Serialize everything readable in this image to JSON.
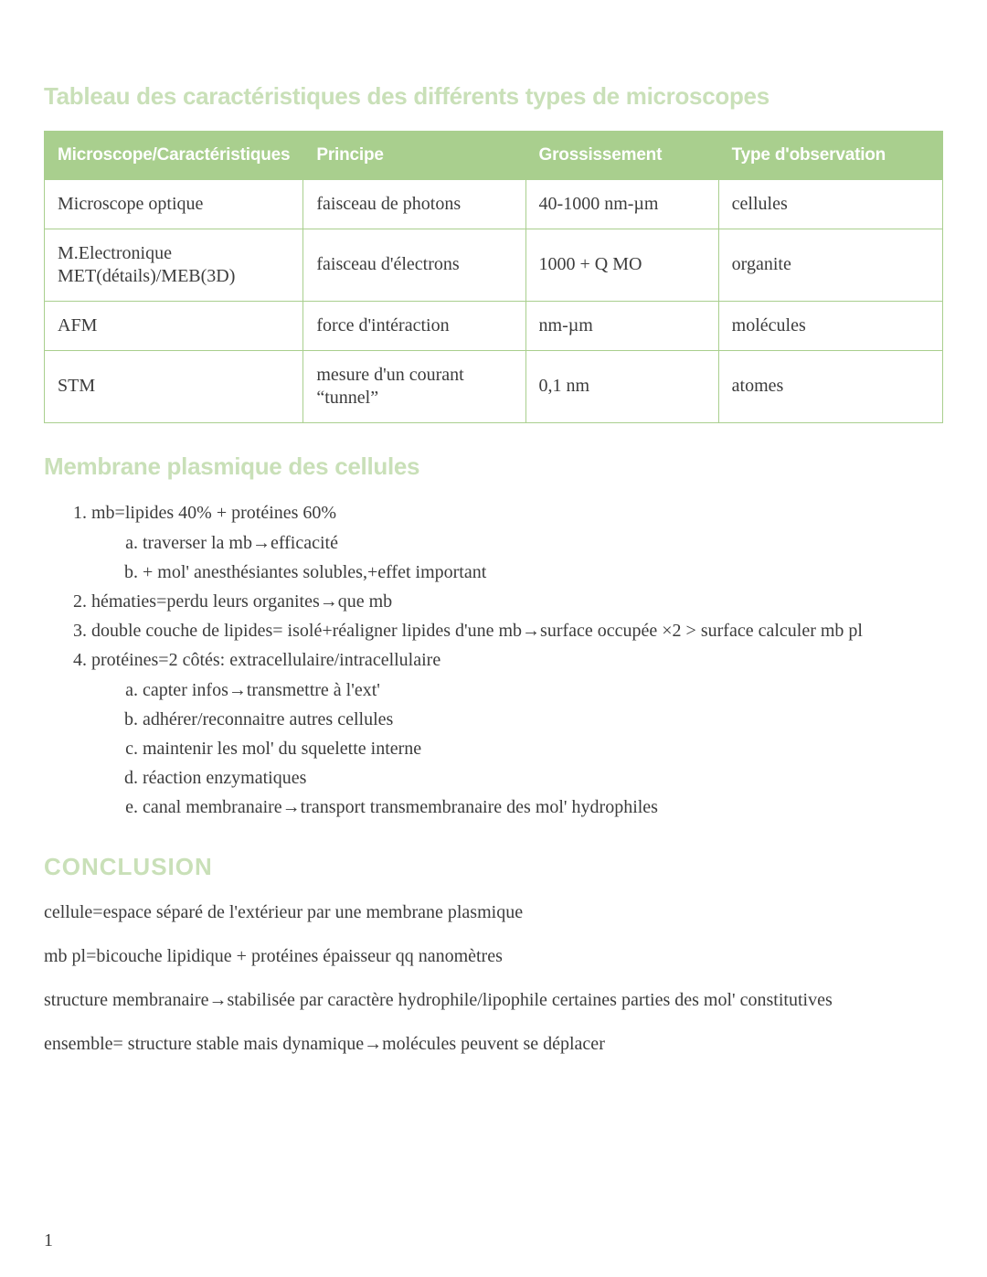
{
  "colors": {
    "heading": "#c9e0b8",
    "table_header_bg": "#a9cf8e",
    "table_header_text": "#ffffff",
    "border": "#a9cf8e",
    "body_text": "#3c3c3c",
    "background": "#ffffff"
  },
  "typography": {
    "heading_family": "Arial Narrow",
    "body_family": "Georgia",
    "heading_size_pt": 20,
    "body_size_pt": 15
  },
  "heading_table": "Tableau des caractéristiques des différents types de microscopes",
  "table": {
    "columns": [
      "Microscope/Caractéristiques",
      "Principe",
      "Grossissement",
      "Type d'observation"
    ],
    "rows": [
      [
        "Microscope optique",
        "faisceau de photons",
        "40-1000 nm-µm",
        "cellules"
      ],
      [
        "M.Electronique MET(détails)/MEB(3D)",
        "faisceau d'électrons",
        "1000 + Q MO",
        "organite"
      ],
      [
        "AFM",
        "force d'intéraction",
        "nm-µm",
        "molécules"
      ],
      [
        "STM",
        "mesure d'un courant “tunnel”",
        "0,1 nm",
        "atomes"
      ]
    ],
    "col_widths_pct": [
      26,
      26,
      22,
      26
    ]
  },
  "heading_membrane": "Membrane plasmique des cellules",
  "notes": {
    "1": "mb=lipides 40% + protéines 60%",
    "1a": "traverser la mb→efficacité",
    "1b": "+ mol' anesthésiantes solubles,+effet important",
    "2": "hématies=perdu leurs organites→que mb",
    "3": "double couche de lipides= isolé+réaligner lipides d'une mb→surface occupée ×2 > surface calculer mb pl",
    "4": "protéines=2 côtés: extracellulaire/intracellulaire",
    "4a": "capter infos→transmettre à l'ext'",
    "4b": "adhérer/reconnaitre autres cellules",
    "4c": "maintenir les mol' du squelette interne",
    "4d": "réaction enzymatiques",
    "4e": "canal membranaire→transport  transmembranaire des mol' hydrophiles"
  },
  "heading_conclusion": "CONCLUSION",
  "conclusion": {
    "p1": "cellule=espace séparé de l'extérieur par une membrane plasmique",
    "p2": "mb pl=bicouche lipidique + protéines épaisseur qq nanomètres",
    "p3": "structure membranaire→stabilisée par caractère hydrophile/lipophile certaines parties des mol' constitutives",
    "p4": "ensemble= structure stable mais dynamique→molécules peuvent se déplacer"
  },
  "page_number": "1"
}
